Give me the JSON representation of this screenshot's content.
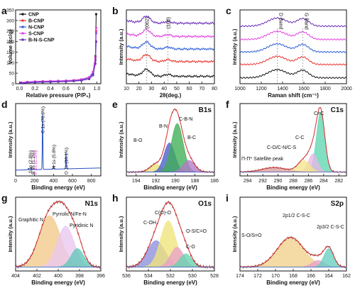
{
  "chart_data": [
    {
      "panel": "a",
      "type": "line",
      "xlabel": "Relative pressure (P/P₀)",
      "ylabel": "Volume (cc/g)",
      "xlim": [
        -0.05,
        1.05
      ],
      "ylim": [
        0,
        350
      ],
      "xticks": [
        "0.0",
        "0.2",
        "0.4",
        "0.6",
        "0.8",
        "1.0"
      ],
      "yticks": [
        "0",
        "50",
        "100",
        "150",
        "200",
        "250",
        "300",
        "350"
      ],
      "legend_position": "top-left",
      "series": [
        {
          "name": "CNP",
          "color": "#111111",
          "marker": "square",
          "x": [
            0.02,
            0.1,
            0.2,
            0.3,
            0.4,
            0.5,
            0.6,
            0.7,
            0.8,
            0.9,
            0.95,
            0.98,
            0.99
          ],
          "y": [
            5,
            8,
            10,
            11,
            12,
            13,
            14,
            16,
            20,
            30,
            55,
            130,
            330
          ]
        },
        {
          "name": "B-CNP",
          "color": "#e8342e",
          "marker": "circle",
          "x": [
            0.02,
            0.1,
            0.2,
            0.3,
            0.4,
            0.5,
            0.6,
            0.7,
            0.8,
            0.9,
            0.95,
            0.98,
            0.99
          ],
          "y": [
            4,
            7,
            9,
            10,
            11,
            12,
            13,
            15,
            19,
            28,
            50,
            120,
            250
          ]
        },
        {
          "name": "N-CNP",
          "color": "#2a5bd7",
          "marker": "triangle",
          "x": [
            0.02,
            0.1,
            0.2,
            0.3,
            0.4,
            0.5,
            0.6,
            0.7,
            0.8,
            0.9,
            0.95,
            0.98,
            0.99
          ],
          "y": [
            3,
            6,
            8,
            9,
            10,
            11,
            12,
            14,
            18,
            27,
            48,
            110,
            240
          ]
        },
        {
          "name": "S-CNP",
          "color": "#e23de2",
          "marker": "triangle-down",
          "x": [
            0.02,
            0.1,
            0.2,
            0.3,
            0.4,
            0.5,
            0.6,
            0.7,
            0.8,
            0.9,
            0.95,
            0.98,
            0.99
          ],
          "y": [
            6,
            9,
            11,
            12,
            13,
            14,
            15,
            17,
            21,
            31,
            56,
            125,
            265
          ]
        },
        {
          "name": "B-N-S-CNP",
          "color": "#6a2bb8",
          "marker": "diamond",
          "x": [
            0.02,
            0.1,
            0.2,
            0.3,
            0.4,
            0.5,
            0.6,
            0.7,
            0.8,
            0.9,
            0.95,
            0.98,
            0.99
          ],
          "y": [
            2,
            4,
            6,
            7,
            8,
            9,
            10,
            12,
            15,
            22,
            40,
            95,
            200
          ]
        }
      ]
    },
    {
      "panel": "b",
      "type": "line",
      "xlabel": "2θ(deg.)",
      "ylabel": "Intensity (a.u.)",
      "xlim": [
        10,
        80
      ],
      "xticks": [
        "10",
        "20",
        "30",
        "40",
        "50",
        "60",
        "70",
        "80"
      ],
      "annotations": [
        "(002)",
        "(100)"
      ],
      "annotation_x": [
        26,
        43
      ],
      "series_colors": [
        "#6a2bb8",
        "#e23de2",
        "#2a5bd7",
        "#e8342e",
        "#111111"
      ]
    },
    {
      "panel": "c",
      "type": "line",
      "xlabel": "Raman shift (cm⁻¹)",
      "ylabel": "Intensity (a.u.)",
      "xlim": [
        1000,
        2000
      ],
      "xticks": [
        "1000",
        "1200",
        "1400",
        "1600",
        "1800",
        "2000"
      ],
      "annotations": [
        "D Band",
        "G Band"
      ],
      "annotation_x": [
        1350,
        1590
      ],
      "series_colors": [
        "#6a2bb8",
        "#e23de2",
        "#2a5bd7",
        "#e8342e",
        "#111111"
      ]
    },
    {
      "panel": "d",
      "type": "line",
      "xlabel": "Binding energy (eV)",
      "ylabel": "Intensity (a.u.)",
      "xlim": [
        0,
        900
      ],
      "xticks": [
        "0",
        "200",
        "400",
        "600",
        "800"
      ],
      "annotations": [
        "C 1s (78.8%)",
        "O 1s (10.1%)",
        "N 1s (5.8%)",
        "S2p (2.8%)",
        "B 1s (1.2%)",
        "P 1s (1.3%)"
      ],
      "annotation_colors": [
        "#111111",
        "#111111",
        "#111111",
        "#111111",
        "#111111",
        "#e23de2"
      ],
      "peaks_ev": [
        284.6,
        532,
        400,
        164,
        190,
        133
      ]
    },
    {
      "panel": "e",
      "type": "area",
      "title": "B1s",
      "xlabel": "Binding energy (eV)",
      "ylabel": "Intensity (a.u.)",
      "xlim": [
        186,
        195
      ],
      "xticks": [
        "194",
        "192",
        "190",
        "188",
        "186"
      ],
      "axis_reversed": true,
      "components": [
        {
          "name": "B-O",
          "center": 192.0,
          "color": "#e8e07a"
        },
        {
          "name": "B-N",
          "center": 190.6,
          "color": "#4a5cc8"
        },
        {
          "name": "C-B-N",
          "center": 189.8,
          "color": "#3fae55"
        },
        {
          "name": "B-C",
          "center": 188.6,
          "color": "#b27ac9"
        }
      ]
    },
    {
      "panel": "f",
      "type": "area",
      "title": "C1s",
      "xlabel": "Binding energy (eV)",
      "ylabel": "Intensity (a.u.)",
      "xlim": [
        281,
        295
      ],
      "xticks": [
        "294",
        "292",
        "290",
        "288",
        "286",
        "284",
        "282"
      ],
      "axis_reversed": true,
      "components": [
        {
          "name": "C=C",
          "center": 284.4,
          "color": "#5fd6b0"
        },
        {
          "name": "C-C",
          "center": 285.4,
          "color": "#e8b6e6"
        },
        {
          "name": "C-O/C-N/C-S",
          "center": 286.6,
          "color": "#f2e58a"
        },
        {
          "name": "Π-Π* Satellite peak",
          "center": 290.5,
          "color": "#d8a0a0"
        }
      ]
    },
    {
      "panel": "g",
      "type": "area",
      "title": "N1s",
      "xlabel": "Binding energy (eV)",
      "ylabel": "Intensity (a.u.)",
      "xlim": [
        396,
        404
      ],
      "xticks": [
        "404",
        "402",
        "400",
        "398",
        "396"
      ],
      "axis_reversed": true,
      "components": [
        {
          "name": "Graphitic N",
          "center": 400.8,
          "color": "#f3c98a"
        },
        {
          "name": "Pyrrolic N/Fe-N",
          "center": 399.3,
          "color": "#e9c7f0"
        },
        {
          "name": "Pyridinic N",
          "center": 398.2,
          "color": "#62c7b8"
        }
      ]
    },
    {
      "panel": "h",
      "type": "area",
      "title": "O1s",
      "xlabel": "Binding energy (eV)",
      "ylabel": "Intensity (a.u.)",
      "xlim": [
        528,
        536
      ],
      "xticks": [
        "536",
        "534",
        "532",
        "530",
        "528"
      ],
      "axis_reversed": true,
      "components": [
        {
          "name": "C-OH",
          "center": 533.3,
          "color": "#8d8fdd"
        },
        {
          "name": "C(O)-O",
          "center": 532.2,
          "color": "#efe47a"
        },
        {
          "name": "O-S/C=O",
          "center": 531.4,
          "color": "#e8a0c8"
        },
        {
          "name": "C-O",
          "center": 530.6,
          "color": "#66d3b0"
        }
      ]
    },
    {
      "panel": "i",
      "type": "area",
      "title": "S2p",
      "xlabel": "Binding energy (eV)",
      "ylabel": "Intensity (a.u.)",
      "xlim": [
        162,
        174
      ],
      "xticks": [
        "174",
        "172",
        "170",
        "168",
        "166",
        "164",
        "162"
      ],
      "axis_reversed": true,
      "components": [
        {
          "name": "S-O/S=O",
          "center": 168.3,
          "color": "#f1cf8a"
        },
        {
          "name": "2p1/2 C-S-C",
          "center": 165.2,
          "color": "#e8a0c8"
        },
        {
          "name": "2p3/2 C-S-C",
          "center": 164.0,
          "color": "#66cfc0"
        }
      ]
    }
  ]
}
